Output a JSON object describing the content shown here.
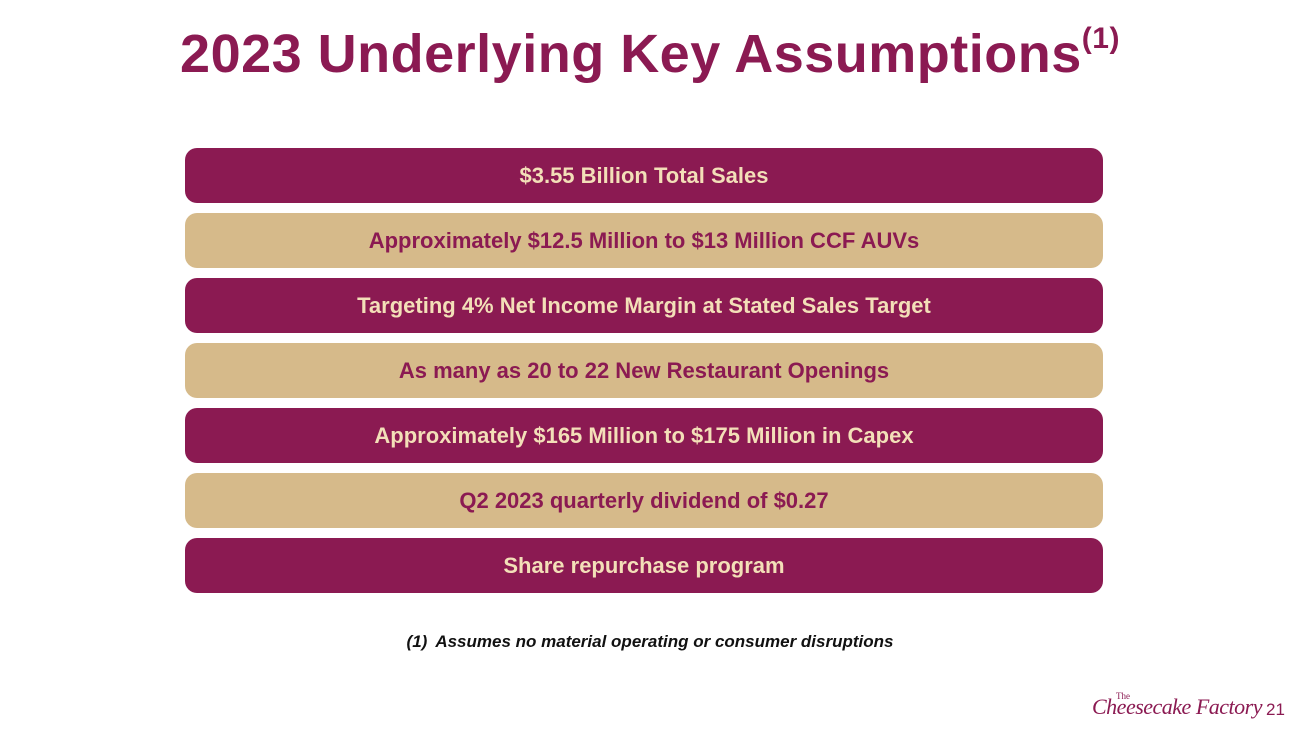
{
  "header": {
    "title": "2023 Underlying Key Assumptions",
    "superscript": "(1)"
  },
  "items": [
    "$3.55 Billion Total Sales",
    "Approximately $12.5 Million to $13 Million CCF AUVs",
    "Targeting 4% Net Income Margin at Stated Sales Target",
    "As many as 20 to 22 New Restaurant Openings",
    "Approximately $165 Million to $175 Million in Capex",
    "Q2 2023 quarterly dividend of $0.27",
    "Share repurchase program"
  ],
  "footnote": {
    "marker": "(1)",
    "text": "Assumes no material operating or consumer disruptions"
  },
  "logo": {
    "small": "The",
    "main": "Cheesecake Factory"
  },
  "page_number": "21"
}
